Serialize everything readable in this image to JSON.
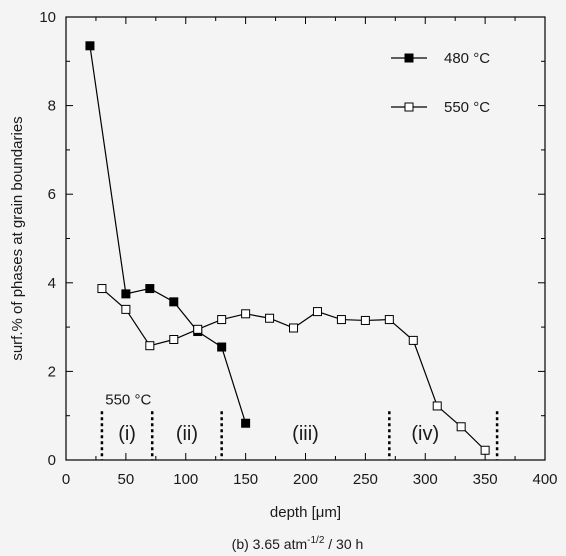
{
  "chart_data": {
    "type": "line",
    "xlabel": "depth [μm]",
    "ylabel": "surf.% of phases at grain boundaries",
    "xlim": [
      0,
      400
    ],
    "ylim": [
      0,
      10
    ],
    "xticks": [
      0,
      50,
      100,
      150,
      200,
      250,
      300,
      350,
      400
    ],
    "yticks": [
      0,
      2,
      4,
      6,
      8,
      10
    ],
    "grid": false,
    "legend_position": "top-right",
    "series": [
      {
        "name": "480 °C",
        "marker": "filled-square",
        "color": "#000000",
        "x": [
          20,
          50,
          70,
          90,
          110,
          130,
          150
        ],
        "y": [
          9.35,
          3.75,
          3.87,
          3.57,
          2.9,
          2.55,
          0.83
        ]
      },
      {
        "name": "550 °C",
        "marker": "open-square",
        "color": "#000000",
        "x": [
          30,
          50,
          70,
          90,
          110,
          130,
          150,
          170,
          190,
          210,
          230,
          250,
          270,
          290,
          310,
          330,
          350
        ],
        "y": [
          3.87,
          3.4,
          2.58,
          2.72,
          2.95,
          3.17,
          3.3,
          3.2,
          2.98,
          3.35,
          3.17,
          3.15,
          3.17,
          2.7,
          1.22,
          0.75,
          0.22
        ]
      }
    ],
    "regions": {
      "title": "550 °C",
      "boundaries": [
        30,
        72,
        130,
        270,
        360
      ],
      "labels": [
        {
          "text": "(i)",
          "x": 51
        },
        {
          "text": "(ii)",
          "x": 101
        },
        {
          "text": "(iii)",
          "x": 200
        },
        {
          "text": "(iv)",
          "x": 300
        }
      ]
    },
    "caption_prefix": "(b) 3.65 atm",
    "caption_superscript": "-1/2",
    "caption_suffix": " / 30 h"
  }
}
